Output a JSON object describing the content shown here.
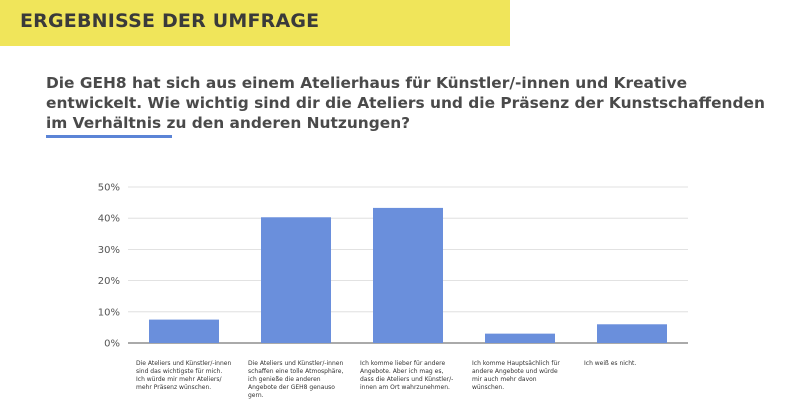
{
  "header": {
    "title": "ERGEBNISSE DER UMFRAGE"
  },
  "question": "Die GEH8 hat sich aus einem Atelierhaus für Künstler/-innen und Kreative entwickelt. Wie wichtig sind dir die Ateliers und die Präsenz der Kunstschaffenden im Verhältnis zu den anderen Nutzungen?",
  "colors": {
    "header_band": "#f0e55a",
    "bar": "#6a8fdc",
    "accent": "#5b84d6"
  },
  "chart_data": {
    "type": "bar",
    "title": "",
    "xlabel": "",
    "ylabel": "",
    "ylim": [
      0,
      50
    ],
    "yticks": [
      0,
      10,
      20,
      30,
      40,
      50
    ],
    "ytick_labels": [
      "0%",
      "10%",
      "20%",
      "30%",
      "40%",
      "50%"
    ],
    "grid": true,
    "categories": [
      "Die Ateliers und Künstler/-innen sind das wichtigste für mich.\nIch würde mir mehr Ateliers/ mehr Präsenz wünschen.",
      "Die Ateliers und Künstler/-innen schaffen eine tolle Atmosphäre, ich genieße die anderen Angebote der GEH8 genauso gern.",
      "Ich komme lieber für andere Angebote. Aber ich mag es, dass die Ateliers und Künstler/-innen am Ort wahrzunehmen.",
      "Ich komme Hauptsächlich für andere Angebote und würde mir auch mehr davon wünschen.",
      "Ich weiß es nicht."
    ],
    "values": [
      7.5,
      40.3,
      43.3,
      3.0,
      6.0
    ]
  }
}
